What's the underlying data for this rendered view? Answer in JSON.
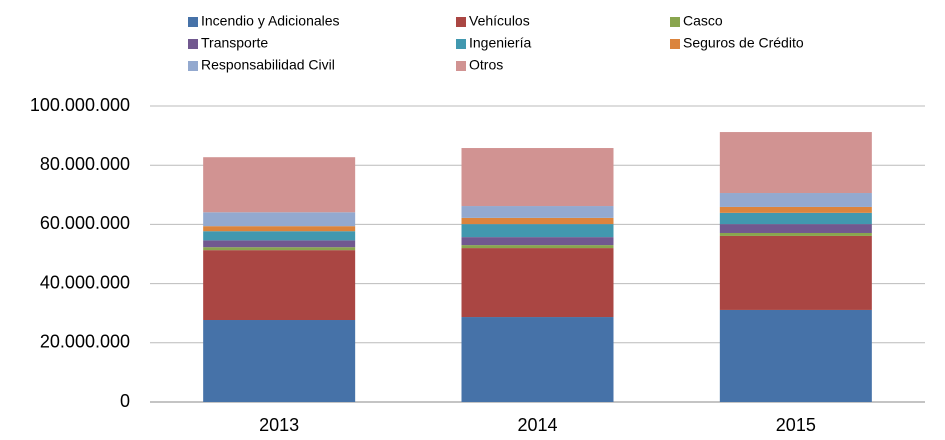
{
  "chart_data": {
    "type": "stacked_bar",
    "categories": [
      "2013",
      "2014",
      "2015"
    ],
    "series": [
      {
        "name": "Incendio y Adicionales",
        "color": "#4672a8",
        "values": [
          27700000,
          28700000,
          31100000
        ]
      },
      {
        "name": "Vehículos",
        "color": "#aa4643",
        "values": [
          23600000,
          23300000,
          25000000
        ]
      },
      {
        "name": "Casco",
        "color": "#89a54e",
        "values": [
          1000000,
          1000000,
          1000000
        ]
      },
      {
        "name": "Transporte",
        "color": "#71588f",
        "values": [
          2300000,
          2700000,
          3000000
        ]
      },
      {
        "name": "Ingeniería",
        "color": "#4198af",
        "values": [
          3100000,
          4400000,
          3800000
        ]
      },
      {
        "name": "Seguros de Crédito",
        "color": "#db843d",
        "values": [
          1700000,
          2100000,
          2000000
        ]
      },
      {
        "name": "Responsabilidad Civil",
        "color": "#93a9cf",
        "values": [
          4700000,
          4000000,
          4700000
        ]
      },
      {
        "name": "Otros",
        "color": "#d19392",
        "values": [
          18600000,
          19600000,
          20600000
        ]
      }
    ],
    "ylim": [
      0,
      100000000
    ],
    "yticks": [
      0,
      {
        "value": 20000000,
        "label": "20.000.000"
      },
      {
        "value": 40000000,
        "label": "40.000.000"
      },
      {
        "value": 60000000,
        "label": "60.000.000"
      },
      {
        "value": 80000000,
        "label": "80.000.000"
      },
      {
        "value": 100000000,
        "label": "100.000.000"
      }
    ],
    "grid": true,
    "legend": "top"
  }
}
